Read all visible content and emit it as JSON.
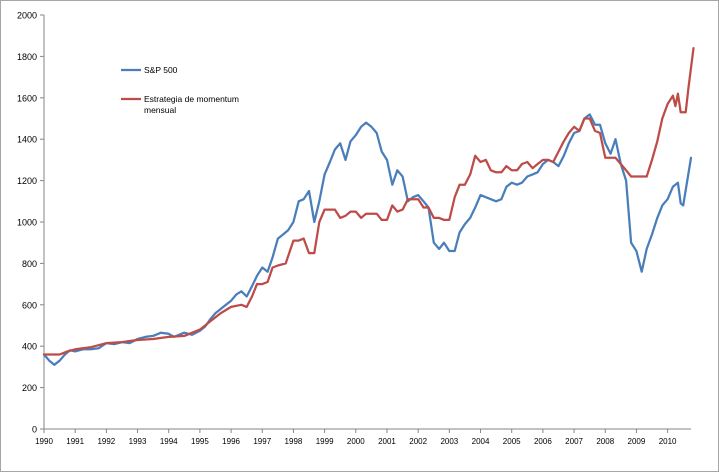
{
  "chart_data": {
    "type": "line",
    "title": "",
    "xlabel": "",
    "ylabel": "",
    "ylim": [
      0,
      2000
    ],
    "xlim": [
      1990,
      2010.75
    ],
    "y_ticks": [
      "0",
      "200",
      "400",
      "600",
      "800",
      "1000",
      "1200",
      "1400",
      "1600",
      "1800",
      "2000"
    ],
    "x_ticks": [
      "1990",
      "1991",
      "1992",
      "1993",
      "1994",
      "1995",
      "1996",
      "1997",
      "1998",
      "1999",
      "2000",
      "2001",
      "2002",
      "2003",
      "2004",
      "2005",
      "2006",
      "2007",
      "2008",
      "2009",
      "2010"
    ],
    "grid": false,
    "legend_position": "top-left",
    "series": [
      {
        "name": "S&P 500",
        "color": "#4a7ebb",
        "points": [
          [
            1990.0,
            360
          ],
          [
            1990.17,
            330
          ],
          [
            1990.33,
            310
          ],
          [
            1990.5,
            330
          ],
          [
            1990.67,
            360
          ],
          [
            1990.83,
            380
          ],
          [
            1991.0,
            375
          ],
          [
            1991.25,
            385
          ],
          [
            1991.5,
            385
          ],
          [
            1991.75,
            390
          ],
          [
            1992.0,
            415
          ],
          [
            1992.25,
            410
          ],
          [
            1992.5,
            420
          ],
          [
            1992.75,
            415
          ],
          [
            1993.0,
            435
          ],
          [
            1993.25,
            445
          ],
          [
            1993.5,
            450
          ],
          [
            1993.75,
            465
          ],
          [
            1994.0,
            460
          ],
          [
            1994.17,
            445
          ],
          [
            1994.33,
            455
          ],
          [
            1994.5,
            465
          ],
          [
            1994.75,
            455
          ],
          [
            1995.0,
            475
          ],
          [
            1995.17,
            495
          ],
          [
            1995.33,
            530
          ],
          [
            1995.5,
            560
          ],
          [
            1995.75,
            590
          ],
          [
            1996.0,
            620
          ],
          [
            1996.17,
            650
          ],
          [
            1996.33,
            665
          ],
          [
            1996.5,
            640
          ],
          [
            1996.67,
            690
          ],
          [
            1996.83,
            740
          ],
          [
            1997.0,
            780
          ],
          [
            1997.17,
            760
          ],
          [
            1997.33,
            830
          ],
          [
            1997.5,
            920
          ],
          [
            1997.67,
            940
          ],
          [
            1997.83,
            960
          ],
          [
            1998.0,
            1000
          ],
          [
            1998.17,
            1100
          ],
          [
            1998.33,
            1110
          ],
          [
            1998.5,
            1150
          ],
          [
            1998.67,
            1000
          ],
          [
            1998.83,
            1100
          ],
          [
            1999.0,
            1230
          ],
          [
            1999.17,
            1290
          ],
          [
            1999.33,
            1350
          ],
          [
            1999.5,
            1380
          ],
          [
            1999.67,
            1300
          ],
          [
            1999.83,
            1390
          ],
          [
            2000.0,
            1420
          ],
          [
            2000.17,
            1460
          ],
          [
            2000.33,
            1480
          ],
          [
            2000.5,
            1460
          ],
          [
            2000.67,
            1430
          ],
          [
            2000.83,
            1340
          ],
          [
            2001.0,
            1300
          ],
          [
            2001.17,
            1180
          ],
          [
            2001.33,
            1250
          ],
          [
            2001.5,
            1220
          ],
          [
            2001.67,
            1100
          ],
          [
            2001.83,
            1120
          ],
          [
            2002.0,
            1130
          ],
          [
            2002.17,
            1100
          ],
          [
            2002.33,
            1070
          ],
          [
            2002.5,
            900
          ],
          [
            2002.67,
            870
          ],
          [
            2002.83,
            900
          ],
          [
            2003.0,
            860
          ],
          [
            2003.17,
            860
          ],
          [
            2003.33,
            950
          ],
          [
            2003.5,
            990
          ],
          [
            2003.67,
            1020
          ],
          [
            2003.83,
            1070
          ],
          [
            2004.0,
            1130
          ],
          [
            2004.17,
            1120
          ],
          [
            2004.33,
            1110
          ],
          [
            2004.5,
            1100
          ],
          [
            2004.67,
            1110
          ],
          [
            2004.83,
            1170
          ],
          [
            2005.0,
            1190
          ],
          [
            2005.17,
            1180
          ],
          [
            2005.33,
            1190
          ],
          [
            2005.5,
            1220
          ],
          [
            2005.67,
            1230
          ],
          [
            2005.83,
            1240
          ],
          [
            2006.0,
            1280
          ],
          [
            2006.17,
            1300
          ],
          [
            2006.33,
            1290
          ],
          [
            2006.5,
            1270
          ],
          [
            2006.67,
            1320
          ],
          [
            2006.83,
            1380
          ],
          [
            2007.0,
            1430
          ],
          [
            2007.17,
            1440
          ],
          [
            2007.33,
            1500
          ],
          [
            2007.5,
            1520
          ],
          [
            2007.67,
            1470
          ],
          [
            2007.83,
            1470
          ],
          [
            2008.0,
            1380
          ],
          [
            2008.17,
            1330
          ],
          [
            2008.33,
            1400
          ],
          [
            2008.5,
            1280
          ],
          [
            2008.67,
            1200
          ],
          [
            2008.83,
            900
          ],
          [
            2009.0,
            860
          ],
          [
            2009.17,
            760
          ],
          [
            2009.33,
            870
          ],
          [
            2009.5,
            940
          ],
          [
            2009.67,
            1020
          ],
          [
            2009.83,
            1080
          ],
          [
            2010.0,
            1110
          ],
          [
            2010.17,
            1170
          ],
          [
            2010.33,
            1190
          ],
          [
            2010.42,
            1090
          ],
          [
            2010.5,
            1080
          ],
          [
            2010.75,
            1310
          ]
        ]
      },
      {
        "name": "Estrategia de momentum mensual",
        "color": "#be4b48",
        "points": [
          [
            1990.0,
            360
          ],
          [
            1990.5,
            360
          ],
          [
            1990.75,
            375
          ],
          [
            1991.0,
            385
          ],
          [
            1991.5,
            395
          ],
          [
            1991.75,
            405
          ],
          [
            1992.0,
            415
          ],
          [
            1992.5,
            420
          ],
          [
            1992.75,
            425
          ],
          [
            1993.0,
            430
          ],
          [
            1993.5,
            435
          ],
          [
            1994.0,
            445
          ],
          [
            1994.5,
            450
          ],
          [
            1995.0,
            480
          ],
          [
            1995.33,
            520
          ],
          [
            1995.67,
            560
          ],
          [
            1996.0,
            590
          ],
          [
            1996.33,
            600
          ],
          [
            1996.5,
            590
          ],
          [
            1996.67,
            640
          ],
          [
            1996.83,
            700
          ],
          [
            1997.0,
            700
          ],
          [
            1997.17,
            710
          ],
          [
            1997.33,
            780
          ],
          [
            1997.5,
            790
          ],
          [
            1997.75,
            800
          ],
          [
            1998.0,
            910
          ],
          [
            1998.17,
            910
          ],
          [
            1998.33,
            920
          ],
          [
            1998.5,
            850
          ],
          [
            1998.67,
            850
          ],
          [
            1998.83,
            1000
          ],
          [
            1999.0,
            1060
          ],
          [
            1999.33,
            1060
          ],
          [
            1999.5,
            1020
          ],
          [
            1999.67,
            1030
          ],
          [
            1999.83,
            1050
          ],
          [
            2000.0,
            1050
          ],
          [
            2000.17,
            1020
          ],
          [
            2000.33,
            1040
          ],
          [
            2000.67,
            1040
          ],
          [
            2000.83,
            1010
          ],
          [
            2001.0,
            1010
          ],
          [
            2001.17,
            1080
          ],
          [
            2001.33,
            1050
          ],
          [
            2001.5,
            1060
          ],
          [
            2001.67,
            1110
          ],
          [
            2001.83,
            1110
          ],
          [
            2002.0,
            1110
          ],
          [
            2002.17,
            1070
          ],
          [
            2002.33,
            1070
          ],
          [
            2002.5,
            1020
          ],
          [
            2002.67,
            1020
          ],
          [
            2002.83,
            1010
          ],
          [
            2003.0,
            1010
          ],
          [
            2003.17,
            1120
          ],
          [
            2003.33,
            1180
          ],
          [
            2003.5,
            1180
          ],
          [
            2003.67,
            1230
          ],
          [
            2003.83,
            1320
          ],
          [
            2004.0,
            1290
          ],
          [
            2004.17,
            1300
          ],
          [
            2004.33,
            1250
          ],
          [
            2004.5,
            1240
          ],
          [
            2004.67,
            1240
          ],
          [
            2004.83,
            1270
          ],
          [
            2005.0,
            1250
          ],
          [
            2005.17,
            1250
          ],
          [
            2005.33,
            1280
          ],
          [
            2005.5,
            1290
          ],
          [
            2005.67,
            1260
          ],
          [
            2005.83,
            1280
          ],
          [
            2006.0,
            1300
          ],
          [
            2006.17,
            1300
          ],
          [
            2006.33,
            1290
          ],
          [
            2006.5,
            1340
          ],
          [
            2006.67,
            1390
          ],
          [
            2006.83,
            1430
          ],
          [
            2007.0,
            1460
          ],
          [
            2007.17,
            1440
          ],
          [
            2007.33,
            1500
          ],
          [
            2007.5,
            1500
          ],
          [
            2007.67,
            1440
          ],
          [
            2007.83,
            1430
          ],
          [
            2008.0,
            1310
          ],
          [
            2008.17,
            1310
          ],
          [
            2008.33,
            1310
          ],
          [
            2008.5,
            1280
          ],
          [
            2008.67,
            1250
          ],
          [
            2008.83,
            1220
          ],
          [
            2009.0,
            1220
          ],
          [
            2009.33,
            1220
          ],
          [
            2009.5,
            1300
          ],
          [
            2009.67,
            1390
          ],
          [
            2009.83,
            1500
          ],
          [
            2010.0,
            1570
          ],
          [
            2010.17,
            1610
          ],
          [
            2010.25,
            1560
          ],
          [
            2010.33,
            1620
          ],
          [
            2010.42,
            1530
          ],
          [
            2010.58,
            1530
          ],
          [
            2010.67,
            1650
          ],
          [
            2010.83,
            1840
          ]
        ]
      }
    ]
  }
}
